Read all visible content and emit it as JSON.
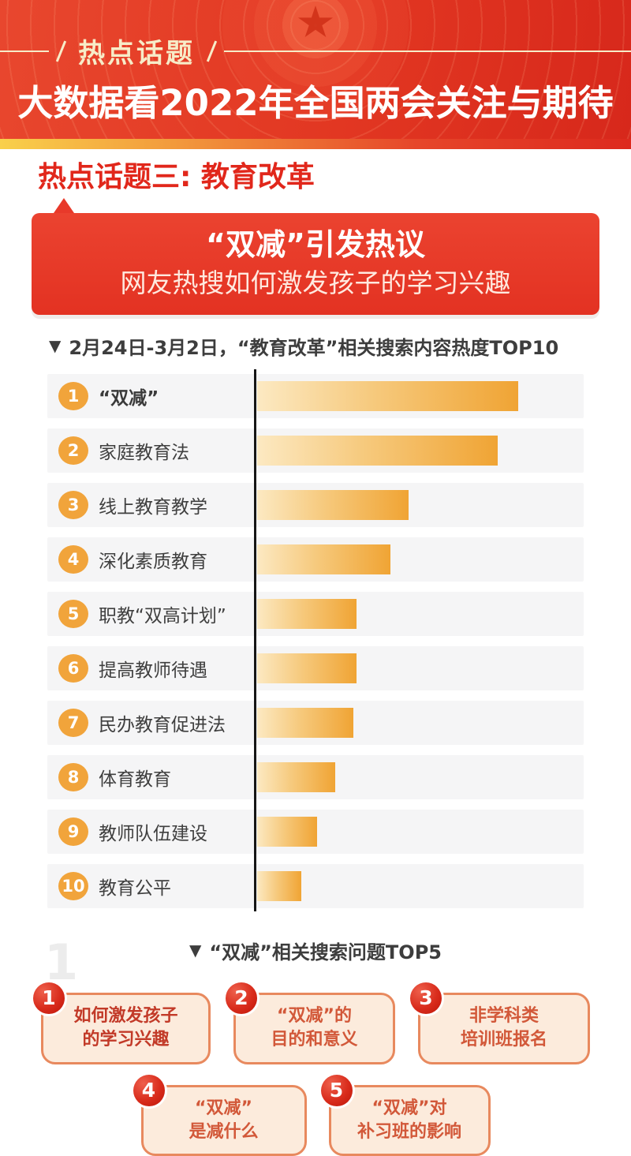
{
  "icons": {
    "triangle_down": "▼",
    "red_star": "five-pointed-star"
  },
  "colors": {
    "header_red": "#e23722",
    "header_cream": "#f7ecc8",
    "divider_gradient": [
      "#f9d04b",
      "#f2993c",
      "#e6462a",
      "#dd2a1e"
    ],
    "section_red": "#e1271b",
    "banner_red": "#e8392a",
    "rank_badge_orange": "#f1a43b",
    "bar_gradient_start": "#fce9c2",
    "bar_gradient_end": "#f0a434",
    "row_bg": "#f5f5f6",
    "baseline_black": "#161616",
    "bubble_fill": "#fcebdc",
    "bubble_border": "#e8895e",
    "bubble_badge_red": "#d92c1c",
    "bubble_text_orange": "#d25839",
    "bubble_text_emphasis_red": "#c23a28"
  },
  "header": {
    "badge_label": "热点话题",
    "title": "大数据看2022年全国两会关注与期待"
  },
  "section": {
    "title": "热点话题三: 教育改革"
  },
  "banner": {
    "title": "“双减”引发热议",
    "subtitle": "网友热搜如何激发孩子的学习兴趣"
  },
  "chart_data": {
    "type": "bar",
    "orientation": "horizontal",
    "title": "2月24日-3月2日，“教育改革”相关搜索内容热度TOP10",
    "xlabel": "",
    "ylabel": "",
    "value_axis_labeled": false,
    "grid": false,
    "legend": "none",
    "note": "values are relative search-heat estimated from bar lengths (max bar = 100); no numeric labels are shown in the figure",
    "ranks": [
      "1",
      "2",
      "3",
      "4",
      "5",
      "6",
      "7",
      "8",
      "9",
      "10"
    ],
    "categories": [
      "“双减”",
      "家庭教育法",
      "线上教育教学",
      "深化素质教育",
      "职教“双高计划”",
      "提高教师待遇",
      "民办教育促进法",
      "体育教育",
      "教师队伍建设",
      "教育公平"
    ],
    "values": [
      100,
      92,
      58,
      51,
      38,
      38,
      37,
      30,
      23,
      17
    ],
    "xlim": [
      0,
      100
    ]
  },
  "top5": {
    "title": "“双减”相关搜索问题TOP5",
    "watermark": "1",
    "items": [
      {
        "rank": "1",
        "lines": [
          "如何激发孩子",
          "的学习兴趣"
        ],
        "emphasis": true
      },
      {
        "rank": "2",
        "lines": [
          "“双减”的",
          "目的和意义"
        ],
        "emphasis": false
      },
      {
        "rank": "3",
        "lines": [
          "非学科类",
          "培训班报名"
        ],
        "emphasis": false
      },
      {
        "rank": "4",
        "lines": [
          "“双减”",
          "是减什么"
        ],
        "emphasis": false
      },
      {
        "rank": "5",
        "lines": [
          "“双减”对",
          "补习班的影响"
        ],
        "emphasis": false
      }
    ]
  }
}
